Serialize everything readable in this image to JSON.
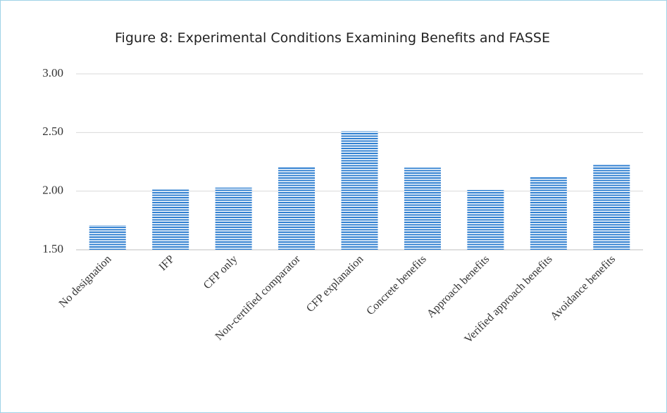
{
  "chart_data": {
    "type": "bar",
    "title": "Figure 8: Experimental Conditions Examining Benefits and FASSE",
    "categories": [
      "No designation",
      "IFP",
      "CFP only",
      "Non-certified comparator",
      "CFP explanation",
      "Concrete benefits",
      "Approach benefits",
      "Verified approach benefits",
      "Avoidance benefits"
    ],
    "values": [
      1.71,
      2.02,
      2.03,
      2.21,
      2.51,
      2.2,
      2.01,
      2.12,
      2.23
    ],
    "color": "#2f7fd0",
    "ylim": [
      1.5,
      3.0
    ],
    "yticks": [
      {
        "value": 1.5,
        "label": "1.50"
      },
      {
        "value": 2.0,
        "label": "2.00"
      },
      {
        "value": 2.5,
        "label": "2.50"
      },
      {
        "value": 3.0,
        "label": "3.00"
      }
    ],
    "grid": true
  }
}
